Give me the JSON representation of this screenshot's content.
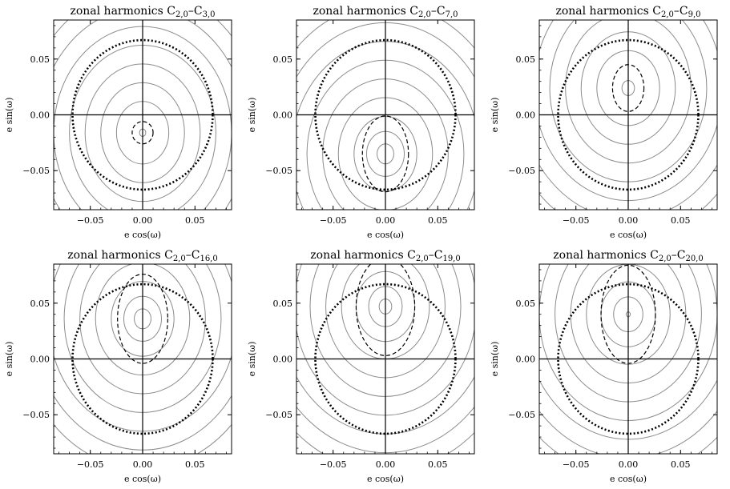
{
  "chart_data": [
    {
      "type": "contour",
      "title_prefix": "zonal harmonics C",
      "title_sub1": "2,0",
      "title_dash": "–C",
      "title_sub2": "3,0",
      "xlabel": "e cos(ω)",
      "ylabel": "e sin(ω)",
      "xlim": [
        -0.085,
        0.085
      ],
      "ylim": [
        -0.085,
        0.085
      ],
      "xticks": [
        -0.05,
        0.0,
        0.05
      ],
      "yticks": [
        -0.05,
        0.0,
        0.05
      ],
      "xtick_labels": [
        "−0.05",
        "0.00",
        "0.05"
      ],
      "ytick_labels": [
        "−0.05",
        "0.00",
        "0.05"
      ],
      "frozen_center": [
        0.0,
        -0.016
      ],
      "contour_radii": [
        0.003,
        0.025,
        0.04,
        0.055,
        0.07,
        0.085,
        0.1,
        0.115,
        0.13
      ],
      "dashed_contour": {
        "center": [
          0.0,
          -0.016
        ],
        "rx": 0.01,
        "ry": 0.01
      },
      "dotted_circle_radius": 0.067
    },
    {
      "type": "contour",
      "title_prefix": "zonal harmonics C",
      "title_sub1": "2,0",
      "title_dash": "–C",
      "title_sub2": "7,0",
      "xlabel": "e cos(ω)",
      "ylabel": "e sin(ω)",
      "xlim": [
        -0.085,
        0.085
      ],
      "ylim": [
        -0.085,
        0.085
      ],
      "xticks": [
        -0.05,
        0.0,
        0.05
      ],
      "yticks": [
        -0.05,
        0.0,
        0.05
      ],
      "xtick_labels": [
        "−0.05",
        "0.00",
        "0.05"
      ],
      "ytick_labels": [
        "−0.05",
        "0.00",
        "0.05"
      ],
      "frozen_center": [
        0.0,
        -0.035
      ],
      "contour_radii": [
        0.008,
        0.018,
        0.03,
        0.045,
        0.06,
        0.075,
        0.09,
        0.105,
        0.12
      ],
      "dashed_contour": {
        "center": [
          0.0,
          -0.035
        ],
        "rx": 0.022,
        "ry": 0.034
      },
      "dotted_circle_radius": 0.067
    },
    {
      "type": "contour",
      "title_prefix": "zonal harmonics C",
      "title_sub1": "2,0",
      "title_dash": "–C",
      "title_sub2": "9,0",
      "xlabel": "e cos(ω)",
      "ylabel": "e sin(ω)",
      "xlim": [
        -0.085,
        0.085
      ],
      "ylim": [
        -0.085,
        0.085
      ],
      "xticks": [
        -0.05,
        0.0,
        0.05
      ],
      "yticks": [
        -0.05,
        0.0,
        0.05
      ],
      "xtick_labels": [
        "−0.05",
        "0.00",
        "0.05"
      ],
      "ytick_labels": [
        "−0.05",
        "0.00",
        "0.05"
      ],
      "frozen_center": [
        0.0,
        0.024
      ],
      "contour_radii": [
        0.006,
        0.03,
        0.045,
        0.06,
        0.075,
        0.09,
        0.105,
        0.12
      ],
      "dashed_contour": {
        "center": [
          0.0,
          0.024
        ],
        "rx": 0.015,
        "ry": 0.021
      },
      "dotted_circle_radius": 0.067
    },
    {
      "type": "contour",
      "title_prefix": "zonal harmonics C",
      "title_sub1": "2,0",
      "title_dash": "–C",
      "title_sub2": "16,0",
      "xlabel": "e cos(ω)",
      "ylabel": "e sin(ω)",
      "xlim": [
        -0.085,
        0.085
      ],
      "ylim": [
        -0.085,
        0.085
      ],
      "xticks": [
        -0.05,
        0.0,
        0.05
      ],
      "yticks": [
        -0.05,
        0.0,
        0.05
      ],
      "xtick_labels": [
        "−0.05",
        "0.00",
        "0.05"
      ],
      "ytick_labels": [
        "−0.05",
        "0.00",
        "0.05"
      ],
      "frozen_center": [
        0.0,
        0.036
      ],
      "contour_radii": [
        0.008,
        0.018,
        0.03,
        0.045,
        0.06,
        0.075,
        0.09,
        0.105,
        0.12
      ],
      "dashed_contour": {
        "center": [
          0.0,
          0.036
        ],
        "rx": 0.024,
        "ry": 0.04
      },
      "dotted_circle_radius": 0.067
    },
    {
      "type": "contour",
      "title_prefix": "zonal harmonics C",
      "title_sub1": "2,0",
      "title_dash": "–C",
      "title_sub2": "19,0",
      "xlabel": "e cos(ω)",
      "ylabel": "e sin(ω)",
      "xlim": [
        -0.085,
        0.085
      ],
      "ylim": [
        -0.085,
        0.085
      ],
      "xticks": [
        -0.05,
        0.0,
        0.05
      ],
      "yticks": [
        -0.05,
        0.0,
        0.05
      ],
      "xtick_labels": [
        "−0.05",
        "0.00",
        "0.05"
      ],
      "ytick_labels": [
        "−0.05",
        "0.00",
        "0.05"
      ],
      "frozen_center": [
        0.0,
        0.047
      ],
      "contour_radii": [
        0.006,
        0.016,
        0.028,
        0.042,
        0.057,
        0.072,
        0.087,
        0.102,
        0.117,
        0.132
      ],
      "dashed_contour": {
        "center": [
          0.0,
          0.047
        ],
        "rx": 0.028,
        "ry": 0.044
      },
      "dotted_circle_radius": 0.067
    },
    {
      "type": "contour",
      "title_prefix": "zonal harmonics C",
      "title_sub1": "2,0",
      "title_dash": "–C",
      "title_sub2": "20,0",
      "xlabel": "e cos(ω)",
      "ylabel": "e sin(ω)",
      "xlim": [
        -0.085,
        0.085
      ],
      "ylim": [
        -0.085,
        0.085
      ],
      "xticks": [
        -0.05,
        0.0,
        0.05
      ],
      "yticks": [
        -0.05,
        0.0,
        0.05
      ],
      "xtick_labels": [
        "−0.05",
        "0.00",
        "0.05"
      ],
      "ytick_labels": [
        "−0.05",
        "0.00",
        "0.05"
      ],
      "frozen_center": [
        0.0,
        0.04
      ],
      "contour_radii": [
        0.002,
        0.014,
        0.026,
        0.04,
        0.055,
        0.07,
        0.085,
        0.1,
        0.115,
        0.13
      ],
      "dashed_contour": {
        "center": [
          0.0,
          0.04
        ],
        "rx": 0.026,
        "ry": 0.044
      },
      "dotted_circle_radius": 0.067
    }
  ]
}
